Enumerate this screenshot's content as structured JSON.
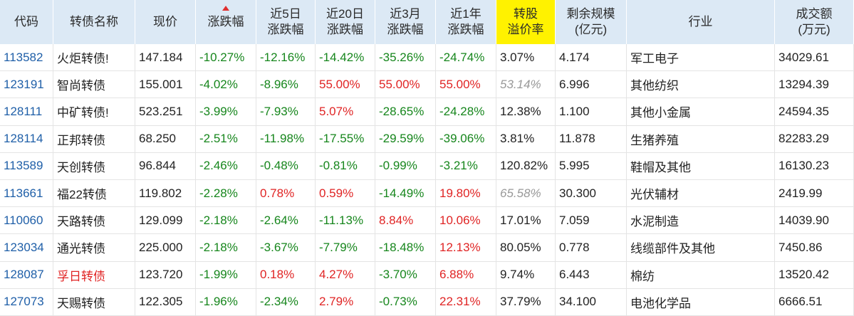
{
  "table": {
    "header": [
      [
        "代码"
      ],
      [
        "转债名称"
      ],
      [
        "现价"
      ],
      [
        "涨跌幅"
      ],
      [
        "近5日",
        "涨跌幅"
      ],
      [
        "近20日",
        "涨跌幅"
      ],
      [
        "近3月",
        "涨跌幅"
      ],
      [
        "近1年",
        "涨跌幅"
      ],
      [
        "转股",
        "溢价率"
      ],
      [
        "剩余规模",
        "(亿元)"
      ],
      [
        "行业"
      ],
      [
        "成交额",
        "(万元)"
      ]
    ],
    "rows": [
      [
        "113582",
        "火炬转债!",
        "147.184",
        "-10.27%",
        "-12.16%",
        "-14.42%",
        "-35.26%",
        "-24.74%",
        "3.07%",
        "4.174",
        "军工电子",
        "34029.61"
      ],
      [
        "123191",
        "智尚转债",
        "155.001",
        "-4.02%",
        "-8.96%",
        "55.00%",
        "55.00%",
        "55.00%",
        "53.14%",
        "6.996",
        "其他纺织",
        "13294.39"
      ],
      [
        "128111",
        "中矿转债!",
        "523.251",
        "-3.99%",
        "-7.93%",
        "5.07%",
        "-28.65%",
        "-24.28%",
        "12.38%",
        "1.100",
        "其他小金属",
        "24594.35"
      ],
      [
        "128114",
        "正邦转债",
        "68.250",
        "-2.51%",
        "-11.98%",
        "-17.55%",
        "-29.59%",
        "-39.06%",
        "3.81%",
        "11.878",
        "生猪养殖",
        "82283.29"
      ],
      [
        "113589",
        "天创转债",
        "96.844",
        "-2.46%",
        "-0.48%",
        "-0.81%",
        "-0.99%",
        "-3.21%",
        "120.82%",
        "5.995",
        "鞋帽及其他",
        "16130.23"
      ],
      [
        "113661",
        "福22转债",
        "119.802",
        "-2.28%",
        "0.78%",
        "0.59%",
        "-14.49%",
        "19.80%",
        "65.58%",
        "30.300",
        "光伏辅材",
        "2419.99"
      ],
      [
        "110060",
        "天路转债",
        "129.099",
        "-2.18%",
        "-2.64%",
        "-11.13%",
        "8.84%",
        "10.06%",
        "17.01%",
        "7.059",
        "水泥制造",
        "14039.90"
      ],
      [
        "123034",
        "通光转债",
        "225.000",
        "-2.18%",
        "-3.67%",
        "-7.79%",
        "-18.48%",
        "12.13%",
        "80.05%",
        "0.778",
        "线缆部件及其他",
        "7450.86"
      ],
      [
        "128087",
        "孚日转债",
        "123.720",
        "-1.99%",
        "0.18%",
        "4.27%",
        "-3.70%",
        "6.88%",
        "9.74%",
        "6.443",
        "棉纺",
        "13520.42"
      ],
      [
        "127073",
        "天赐转债",
        "122.305",
        "-1.96%",
        "-2.34%",
        "2.79%",
        "-0.73%",
        "22.31%",
        "37.79%",
        "34.100",
        "电池化学品",
        "6666.51"
      ]
    ]
  }
}
